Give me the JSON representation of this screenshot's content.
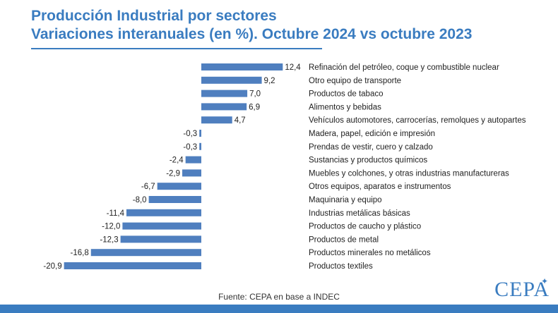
{
  "header": {
    "title_line1": "Producción Industrial por sectores",
    "title_line2": "Variaciones interanuales (en %). Octubre 2024 vs octubre 2023"
  },
  "footer": {
    "source": "Fuente: CEPA en base a INDEC",
    "logo_text": "CEPA"
  },
  "colors": {
    "accent": "#3a7cc0",
    "bar": "#4f7fbf"
  },
  "chart_data": {
    "type": "bar",
    "orientation": "horizontal",
    "categories": [
      "Refinación del petróleo, coque y combustible nuclear",
      "Otro equipo de transporte",
      "Productos de tabaco",
      "Alimentos y bebidas",
      "Vehículos automotores, carrocerías, remolques y autopartes",
      "Madera, papel, edición e impresión",
      "Prendas de vestir, cuero y calzado",
      "Sustancias y productos químicos",
      "Muebles y colchones, y otras industrias manufactureras",
      "Otros equipos, aparatos e instrumentos",
      "Maquinaria y equipo",
      "Industrias metálicas básicas",
      "Productos de caucho y plástico",
      "Productos de metal",
      "Productos minerales no metálicos",
      "Productos textiles"
    ],
    "values": [
      12.4,
      9.2,
      7.0,
      6.9,
      4.7,
      -0.3,
      -0.3,
      -2.4,
      -2.9,
      -6.7,
      -8.0,
      -11.4,
      -12.0,
      -12.3,
      -16.8,
      -20.9
    ],
    "value_labels": [
      "12,4",
      "9,2",
      "7,0",
      "6,9",
      "4,7",
      "-0,3",
      "-0,3",
      "-2,4",
      "-2,9",
      "-6,7",
      "-8,0",
      "-11,4",
      "-12,0",
      "-12,3",
      "-16,8",
      "-20,9"
    ],
    "grid": false,
    "legend": "none"
  }
}
